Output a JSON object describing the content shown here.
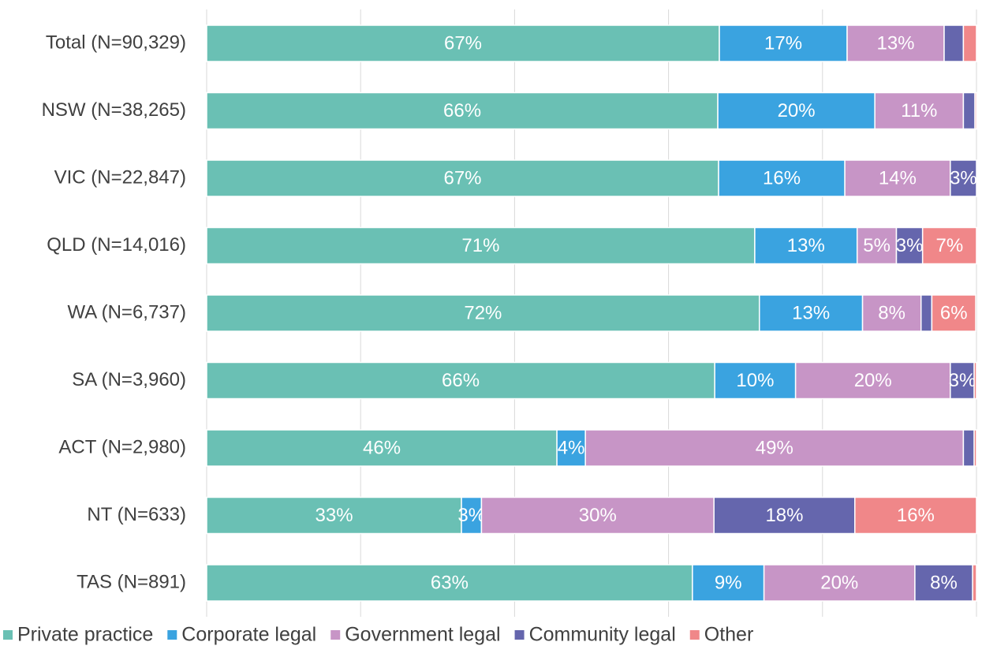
{
  "chart_data": {
    "type": "stacked-bar-horizontal",
    "categories": [
      "Total (N=90,329)",
      "NSW (N=38,265)",
      "VIC (N=22,847)",
      "QLD (N=14,016)",
      "WA (N=6,737)",
      "SA (N=3,960)",
      "ACT (N=2,980)",
      "NT (N=633)",
      "TAS (N=891)"
    ],
    "xlim": [
      0,
      100
    ],
    "xticks": [
      0,
      20,
      40,
      60,
      80,
      100
    ],
    "grid": true,
    "legend": "bottom",
    "series": [
      {
        "name": "Private practice",
        "color": "#6ac0b4",
        "values": [
          66.6,
          66.4,
          66.5,
          71.2,
          71.8,
          66.0,
          45.5,
          33.1,
          63.1
        ],
        "value_labels": [
          "67%",
          "66%",
          "67%",
          "71%",
          "72%",
          "66%",
          "46%",
          "33%",
          "63%"
        ]
      },
      {
        "name": "Corporate legal",
        "color": "#3aa3e0",
        "values": [
          16.6,
          20.4,
          16.4,
          13.3,
          13.4,
          10.5,
          3.7,
          2.6,
          9.3
        ],
        "value_labels": [
          "17%",
          "20%",
          "16%",
          "13%",
          "13%",
          "10%",
          "4%",
          "3%",
          "9%"
        ]
      },
      {
        "name": "Government legal",
        "color": "#c795c6",
        "values": [
          12.6,
          11.5,
          13.7,
          5.1,
          7.6,
          20.1,
          49.1,
          30.2,
          19.6
        ],
        "value_labels": [
          "13%",
          "11%",
          "14%",
          "5%",
          "8%",
          "20%",
          "49%",
          "30%",
          "20%"
        ]
      },
      {
        "name": "Community legal",
        "color": "#6566ad",
        "values": [
          2.5,
          1.5,
          3.4,
          3.4,
          1.4,
          3.1,
          1.4,
          18.3,
          7.5
        ],
        "value_labels": [
          null,
          null,
          "3%",
          "3%",
          null,
          "3%",
          null,
          "18%",
          "8%"
        ]
      },
      {
        "name": "Other",
        "color": "#f08789",
        "values": [
          1.7,
          0.2,
          0,
          7.0,
          5.7,
          0.3,
          0.3,
          15.8,
          0.5
        ],
        "value_labels": [
          null,
          null,
          null,
          "7%",
          "6%",
          null,
          null,
          "16%",
          null
        ]
      }
    ]
  }
}
